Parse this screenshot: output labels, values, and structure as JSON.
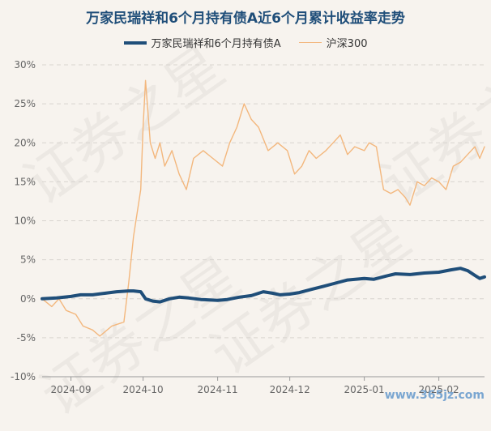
{
  "chart_data": {
    "type": "line",
    "title": "万家民瑞祥和6个月持有债A近6个月累计收益率走势",
    "legend_position": "top",
    "grid": true,
    "ylim": [
      -10,
      30
    ],
    "y_ticks": [
      "30%",
      "25%",
      "20%",
      "15%",
      "10%",
      "5%",
      "0%",
      "-5%",
      "-10%"
    ],
    "y_tick_values": [
      30,
      25,
      20,
      15,
      10,
      5,
      0,
      -5,
      -10
    ],
    "x_range": [
      "2024-08-20",
      "2025-02-20"
    ],
    "x_ticks": [
      "2024-09",
      "2024-10",
      "2024-11",
      "2024-12",
      "2025-01",
      "2025-02"
    ],
    "x_tick_dates": [
      "2024-09-01",
      "2024-10-01",
      "2024-11-01",
      "2024-12-01",
      "2025-01-01",
      "2025-02-01"
    ],
    "series": [
      {
        "name": "万家民瑞祥和6个月持有债A",
        "color": "#1f4e79",
        "points": [
          [
            "2024-08-20",
            0.0
          ],
          [
            "2024-08-26",
            0.1
          ],
          [
            "2024-09-01",
            0.3
          ],
          [
            "2024-09-05",
            0.5
          ],
          [
            "2024-09-10",
            0.5
          ],
          [
            "2024-09-15",
            0.7
          ],
          [
            "2024-09-20",
            0.9
          ],
          [
            "2024-09-25",
            1.0
          ],
          [
            "2024-09-27",
            1.0
          ],
          [
            "2024-09-30",
            0.9
          ],
          [
            "2024-10-02",
            0.0
          ],
          [
            "2024-10-05",
            -0.3
          ],
          [
            "2024-10-08",
            -0.4
          ],
          [
            "2024-10-12",
            0.0
          ],
          [
            "2024-10-16",
            0.2
          ],
          [
            "2024-10-20",
            0.1
          ],
          [
            "2024-10-25",
            -0.1
          ],
          [
            "2024-11-01",
            -0.2
          ],
          [
            "2024-11-05",
            -0.1
          ],
          [
            "2024-11-10",
            0.2
          ],
          [
            "2024-11-15",
            0.4
          ],
          [
            "2024-11-20",
            0.9
          ],
          [
            "2024-11-24",
            0.7
          ],
          [
            "2024-11-27",
            0.5
          ],
          [
            "2024-12-01",
            0.6
          ],
          [
            "2024-12-05",
            0.8
          ],
          [
            "2024-12-10",
            1.2
          ],
          [
            "2024-12-15",
            1.6
          ],
          [
            "2024-12-20",
            2.0
          ],
          [
            "2024-12-25",
            2.4
          ],
          [
            "2025-01-01",
            2.6
          ],
          [
            "2025-01-05",
            2.5
          ],
          [
            "2025-01-10",
            2.9
          ],
          [
            "2025-01-14",
            3.2
          ],
          [
            "2025-01-20",
            3.1
          ],
          [
            "2025-01-26",
            3.3
          ],
          [
            "2025-02-01",
            3.4
          ],
          [
            "2025-02-06",
            3.7
          ],
          [
            "2025-02-10",
            3.9
          ],
          [
            "2025-02-13",
            3.6
          ],
          [
            "2025-02-16",
            3.0
          ],
          [
            "2025-02-18",
            2.6
          ],
          [
            "2025-02-20",
            2.8
          ]
        ]
      },
      {
        "name": "沪深300",
        "color": "#f3b77d",
        "points": [
          [
            "2024-08-20",
            0.0
          ],
          [
            "2024-08-24",
            -1.0
          ],
          [
            "2024-08-27",
            0.0
          ],
          [
            "2024-08-30",
            -1.5
          ],
          [
            "2024-09-03",
            -2.0
          ],
          [
            "2024-09-06",
            -3.5
          ],
          [
            "2024-09-10",
            -4.0
          ],
          [
            "2024-09-13",
            -4.8
          ],
          [
            "2024-09-18",
            -3.5
          ],
          [
            "2024-09-23",
            -3.0
          ],
          [
            "2024-09-25",
            2.0
          ],
          [
            "2024-09-27",
            8.0
          ],
          [
            "2024-09-30",
            14.0
          ],
          [
            "2024-10-01",
            22.0
          ],
          [
            "2024-10-02",
            28.0
          ],
          [
            "2024-10-04",
            20.0
          ],
          [
            "2024-10-06",
            18.0
          ],
          [
            "2024-10-08",
            20.0
          ],
          [
            "2024-10-10",
            17.0
          ],
          [
            "2024-10-13",
            19.0
          ],
          [
            "2024-10-16",
            16.0
          ],
          [
            "2024-10-19",
            14.0
          ],
          [
            "2024-10-22",
            18.0
          ],
          [
            "2024-10-26",
            19.0
          ],
          [
            "2024-10-30",
            18.0
          ],
          [
            "2024-11-03",
            17.0
          ],
          [
            "2024-11-06",
            20.0
          ],
          [
            "2024-11-09",
            22.0
          ],
          [
            "2024-11-12",
            25.0
          ],
          [
            "2024-11-15",
            23.0
          ],
          [
            "2024-11-18",
            22.0
          ],
          [
            "2024-11-22",
            19.0
          ],
          [
            "2024-11-26",
            20.0
          ],
          [
            "2024-11-30",
            19.0
          ],
          [
            "2024-12-03",
            16.0
          ],
          [
            "2024-12-06",
            17.0
          ],
          [
            "2024-12-09",
            19.0
          ],
          [
            "2024-12-12",
            18.0
          ],
          [
            "2024-12-16",
            19.0
          ],
          [
            "2024-12-19",
            20.0
          ],
          [
            "2024-12-22",
            21.0
          ],
          [
            "2024-12-25",
            18.5
          ],
          [
            "2024-12-28",
            19.5
          ],
          [
            "2025-01-01",
            19.0
          ],
          [
            "2025-01-03",
            20.0
          ],
          [
            "2025-01-06",
            19.5
          ],
          [
            "2025-01-09",
            14.0
          ],
          [
            "2025-01-12",
            13.5
          ],
          [
            "2025-01-15",
            14.0
          ],
          [
            "2025-01-18",
            13.0
          ],
          [
            "2025-01-20",
            12.0
          ],
          [
            "2025-01-23",
            15.0
          ],
          [
            "2025-01-26",
            14.5
          ],
          [
            "2025-01-29",
            15.5
          ],
          [
            "2025-02-01",
            15.0
          ],
          [
            "2025-02-04",
            14.0
          ],
          [
            "2025-02-07",
            17.0
          ],
          [
            "2025-02-10",
            17.5
          ],
          [
            "2025-02-13",
            18.5
          ],
          [
            "2025-02-16",
            19.5
          ],
          [
            "2025-02-18",
            18.0
          ],
          [
            "2025-02-20",
            19.5
          ]
        ]
      }
    ]
  },
  "watermark_text": "证券之星",
  "footer_watermark": "www.365jz.com"
}
